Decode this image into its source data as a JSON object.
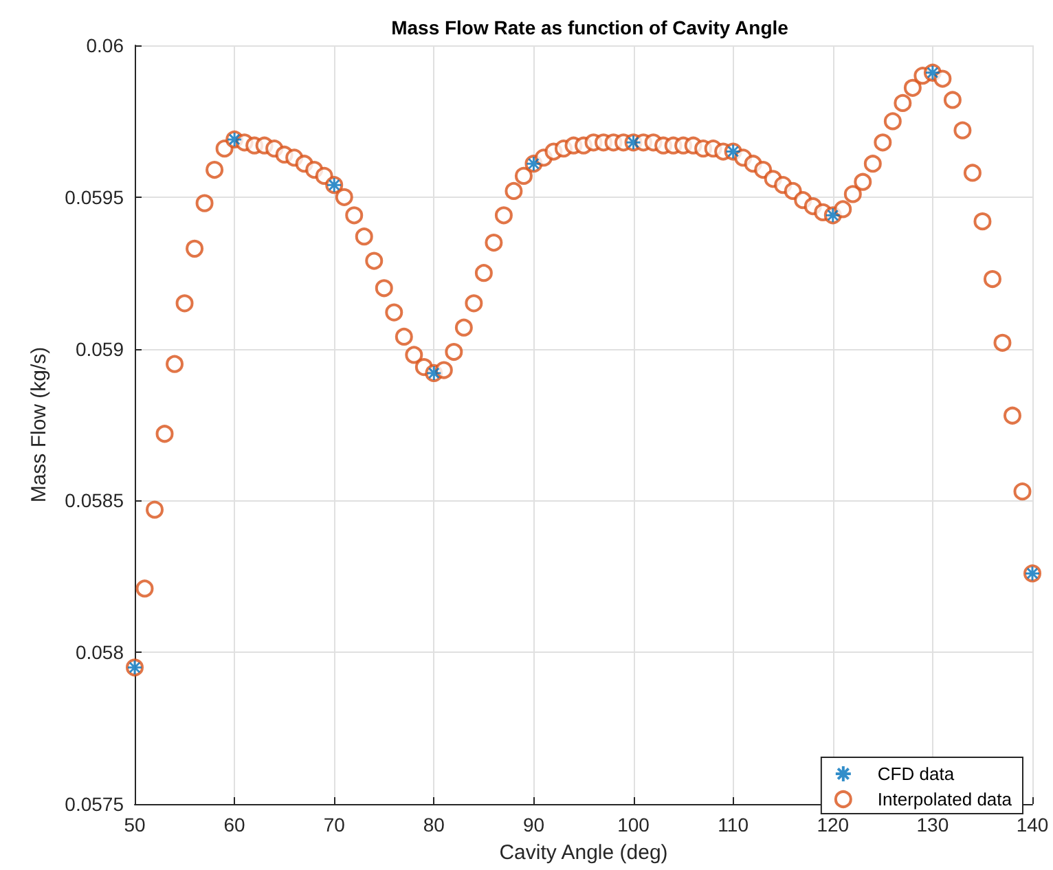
{
  "chart_data": {
    "type": "scatter",
    "title": "Mass Flow Rate as function of Cavity Angle",
    "xlabel": "Cavity Angle (deg)",
    "ylabel": "Mass Flow (kg/s)",
    "xlim": [
      50,
      140
    ],
    "xticks": [
      50,
      60,
      70,
      80,
      90,
      100,
      110,
      120,
      130,
      140
    ],
    "ylim": [
      0.0575,
      0.06
    ],
    "yticks": [
      0.0575,
      0.058,
      0.0585,
      0.059,
      0.0595,
      0.06
    ],
    "grid": true,
    "legend": "bottom right",
    "series": [
      {
        "name": "CFD data",
        "color": "#0072bd",
        "marker": "cross",
        "x": [
          50,
          60,
          70,
          80,
          90,
          100,
          110,
          120,
          130,
          140
        ],
        "values": [
          0.05795,
          0.05969,
          0.05954,
          0.05892,
          0.05961,
          0.05968,
          0.05965,
          0.05944,
          0.05991,
          0.05826
        ]
      },
      {
        "name": "Interpolated data",
        "color": "#d95319",
        "marker": "circle",
        "x": [
          50,
          51,
          52,
          53,
          54,
          55,
          56,
          57,
          58,
          59,
          60,
          61,
          62,
          63,
          64,
          65,
          66,
          67,
          68,
          69,
          70,
          71,
          72,
          73,
          74,
          75,
          76,
          77,
          78,
          79,
          80,
          81,
          82,
          83,
          84,
          85,
          86,
          87,
          88,
          89,
          90,
          91,
          92,
          93,
          94,
          95,
          96,
          97,
          98,
          99,
          100,
          101,
          102,
          103,
          104,
          105,
          106,
          107,
          108,
          109,
          110,
          111,
          112,
          113,
          114,
          115,
          116,
          117,
          118,
          119,
          120,
          121,
          122,
          123,
          124,
          125,
          126,
          127,
          128,
          129,
          130,
          131,
          132,
          133,
          134,
          135,
          136,
          137,
          138,
          139,
          140
        ],
        "values": [
          0.05795,
          0.05821,
          0.05847,
          0.05872,
          0.05895,
          0.05915,
          0.05933,
          0.05948,
          0.05959,
          0.05966,
          0.05969,
          0.05968,
          0.05967,
          0.05967,
          0.05966,
          0.05964,
          0.05963,
          0.05961,
          0.05959,
          0.05957,
          0.05954,
          0.0595,
          0.05944,
          0.05937,
          0.05929,
          0.0592,
          0.05912,
          0.05904,
          0.05898,
          0.05894,
          0.05892,
          0.05893,
          0.05899,
          0.05907,
          0.05915,
          0.05925,
          0.05935,
          0.05944,
          0.05952,
          0.05957,
          0.05961,
          0.05963,
          0.05965,
          0.05966,
          0.05967,
          0.05967,
          0.05968,
          0.05968,
          0.05968,
          0.05968,
          0.05968,
          0.05968,
          0.05968,
          0.05967,
          0.05967,
          0.05967,
          0.05967,
          0.05966,
          0.05966,
          0.05965,
          0.05965,
          0.05963,
          0.05961,
          0.05959,
          0.05956,
          0.05954,
          0.05952,
          0.05949,
          0.05947,
          0.05945,
          0.05944,
          0.05946,
          0.05951,
          0.05955,
          0.05961,
          0.05968,
          0.05975,
          0.05981,
          0.05986,
          0.0599,
          0.05991,
          0.05989,
          0.05982,
          0.05972,
          0.05958,
          0.05942,
          0.05923,
          0.05902,
          0.05878,
          0.05853,
          0.05826
        ]
      }
    ]
  }
}
